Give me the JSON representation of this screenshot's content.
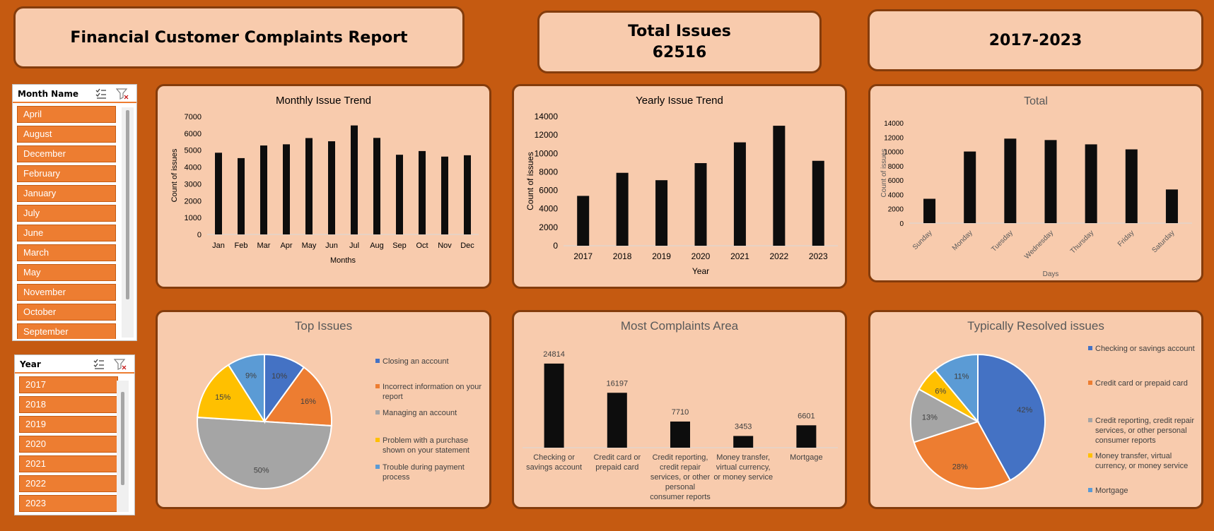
{
  "header": {
    "report_title": "Financial Customer Complaints Report",
    "total_label": "Total Issues",
    "total_value": "62516",
    "period": "2017-2023"
  },
  "slicers": {
    "month": {
      "title": "Month Name",
      "items": [
        "April",
        "August",
        "December",
        "February",
        "January",
        "July",
        "June",
        "March",
        "May",
        "November",
        "October",
        "September"
      ]
    },
    "year": {
      "title": "Year",
      "items": [
        "2017",
        "2018",
        "2019",
        "2020",
        "2021",
        "2022",
        "2023"
      ]
    }
  },
  "colors": {
    "background": "#c55a11",
    "card": "#f8cbad",
    "border": "#843c0c",
    "bar": "#0d0d0d",
    "slicer_item": "#ed7d31",
    "pie_blue": "#4472c4",
    "pie_orange": "#ed7d31",
    "pie_gray": "#a5a5a5",
    "pie_yellow": "#ffc000",
    "pie_lightblue": "#5b9bd5"
  },
  "chart_data": [
    {
      "id": "monthly",
      "type": "bar",
      "title": "Monthly Issue Trend",
      "xlabel": "Months",
      "ylabel": "Count of issues",
      "categories": [
        "Jan",
        "Feb",
        "Mar",
        "Apr",
        "May",
        "Jun",
        "Jul",
        "Aug",
        "Sep",
        "Oct",
        "Nov",
        "Dec"
      ],
      "values": [
        4850,
        4530,
        5280,
        5350,
        5720,
        5530,
        6470,
        5730,
        4730,
        4950,
        4620,
        4700
      ],
      "ylim": [
        0,
        7000
      ],
      "yticks": [
        "0",
        "1000",
        "2000",
        "3000",
        "4000",
        "5000",
        "6000",
        "7000"
      ]
    },
    {
      "id": "yearly",
      "type": "bar",
      "title": "Yearly Issue Trend",
      "xlabel": "Year",
      "ylabel": "Count of issues",
      "categories": [
        "2017",
        "2018",
        "2019",
        "2020",
        "2021",
        "2022",
        "2023"
      ],
      "values": [
        5400,
        7900,
        7100,
        8950,
        11200,
        13000,
        9200
      ],
      "ylim": [
        0,
        14000
      ],
      "yticks": [
        "0",
        "2000",
        "4000",
        "6000",
        "8000",
        "10000",
        "12000",
        "14000"
      ]
    },
    {
      "id": "daily",
      "type": "bar",
      "title": "Total",
      "xlabel": "Days",
      "ylabel": "Count of issues",
      "categories": [
        "Sunday",
        "Monday",
        "Tuesday",
        "Wednesday",
        "Thursday",
        "Friday",
        "Saturday"
      ],
      "values": [
        3400,
        10000,
        11800,
        11600,
        11000,
        10300,
        4700
      ],
      "ylim": [
        0,
        14000
      ],
      "yticks": [
        "0",
        "2000",
        "4000",
        "6000",
        "8000",
        "10000",
        "12000",
        "14000"
      ]
    },
    {
      "id": "top_issues",
      "type": "pie",
      "title": "Top Issues",
      "labels": [
        "Closing an account",
        "Incorrect information on your report",
        "Managing an account",
        "Problem with a purchase shown on your statement",
        "Trouble during payment process"
      ],
      "values": [
        10,
        16,
        50,
        15,
        9
      ],
      "display_labels": [
        "10%",
        "16%",
        "50%",
        "15%",
        "9%"
      ],
      "legend_lines": [
        [
          "Closing an account"
        ],
        [
          "Incorrect information on your",
          "report"
        ],
        [
          "Managing an account"
        ],
        [
          "Problem with a purchase",
          "shown on your statement"
        ],
        [
          "Trouble during payment",
          "process"
        ]
      ]
    },
    {
      "id": "complaints_area",
      "type": "bar",
      "title": "Most Complaints Area",
      "categories": [
        "Checking or savings account",
        "Credit card or prepaid card",
        "Credit reporting, credit repair services, or other personal consumer reports",
        "Money transfer, virtual currency, or money service",
        "Mortgage"
      ],
      "category_lines": [
        [
          "Checking or",
          "savings account"
        ],
        [
          "Credit card or",
          "prepaid card"
        ],
        [
          "Credit reporting,",
          "credit repair",
          "services, or other",
          "personal",
          "consumer reports"
        ],
        [
          "Money transfer,",
          "virtual currency,",
          "or money service"
        ],
        [
          "Mortgage"
        ]
      ],
      "values": [
        24814,
        16197,
        7710,
        3453,
        6601
      ],
      "data_labels": [
        "24814",
        "16197",
        "7710",
        "3453",
        "6601"
      ]
    },
    {
      "id": "resolved",
      "type": "pie",
      "title": "Typically Resolved issues",
      "labels": [
        "Checking or savings account",
        "Credit card or prepaid card",
        "Credit reporting, credit repair services, or other personal consumer reports",
        "Money transfer, virtual currency, or money service",
        "Mortgage"
      ],
      "values": [
        42,
        28,
        13,
        6,
        11
      ],
      "display_labels": [
        "42%",
        "28%",
        "13%",
        "6%",
        "11%"
      ],
      "legend_lines": [
        [
          "Checking or savings account"
        ],
        [
          "Credit card or prepaid card"
        ],
        [
          "Credit reporting, credit repair",
          "services, or other personal",
          "consumer reports"
        ],
        [
          "Money transfer, virtual",
          "currency, or money service"
        ],
        [
          "Mortgage"
        ]
      ]
    }
  ]
}
